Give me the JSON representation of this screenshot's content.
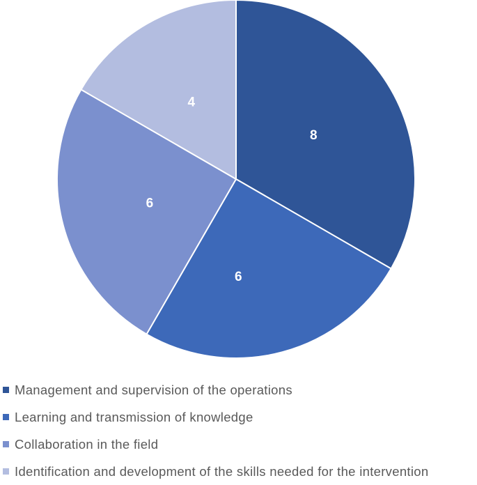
{
  "chart_data": {
    "type": "pie",
    "categories": [
      "Management and supervision of the operations",
      "Learning and transmission of knowledge",
      "Collaboration in the field",
      "Identification and development of the skills needed for the intervention"
    ],
    "values": [
      8,
      6,
      6,
      4
    ],
    "data_labels": [
      "8",
      "6",
      "6",
      "4"
    ],
    "colors": [
      "#2F5597",
      "#3D69B9",
      "#7B90CE",
      "#B3BDE0"
    ],
    "start_angle": "12 o'clock",
    "direction": "clockwise",
    "legend_position": "bottom-left"
  }
}
